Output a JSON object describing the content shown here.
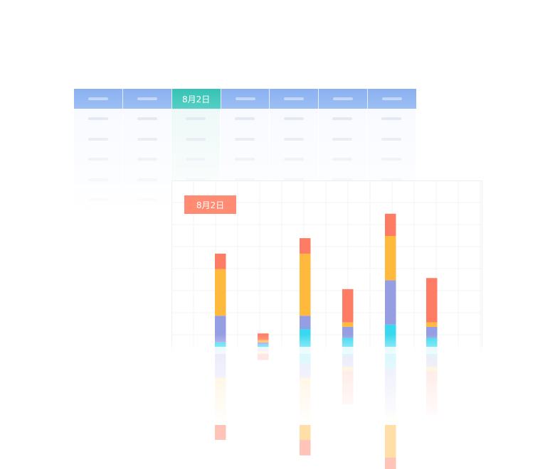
{
  "table": {
    "columns": 7,
    "active_column": 2,
    "active_header_label": "8月2日",
    "rows": 5,
    "colors": {
      "header": "#8ab0f0",
      "active_header": "#36c2b4"
    }
  },
  "chart_badge": {
    "label": "8月2日",
    "color": "#ff8c72"
  },
  "chart_data": {
    "type": "bar",
    "stacked": true,
    "categories": [
      "",
      "",
      "",
      "",
      "",
      ""
    ],
    "series": [
      {
        "color": "#38d8f0",
        "values": [
          2,
          1,
          8,
          4,
          10,
          4
        ]
      },
      {
        "color": "#959de3",
        "values": [
          12,
          1,
          6,
          5,
          20,
          5
        ]
      },
      {
        "color": "#ffba3e",
        "values": [
          21,
          1,
          28,
          2,
          20,
          2
        ]
      },
      {
        "color": "#ff7c64",
        "values": [
          7,
          3,
          7,
          15,
          10,
          20
        ]
      }
    ],
    "ylim": [
      0,
      75
    ],
    "grid": true,
    "legend": "none",
    "reflection": true
  }
}
